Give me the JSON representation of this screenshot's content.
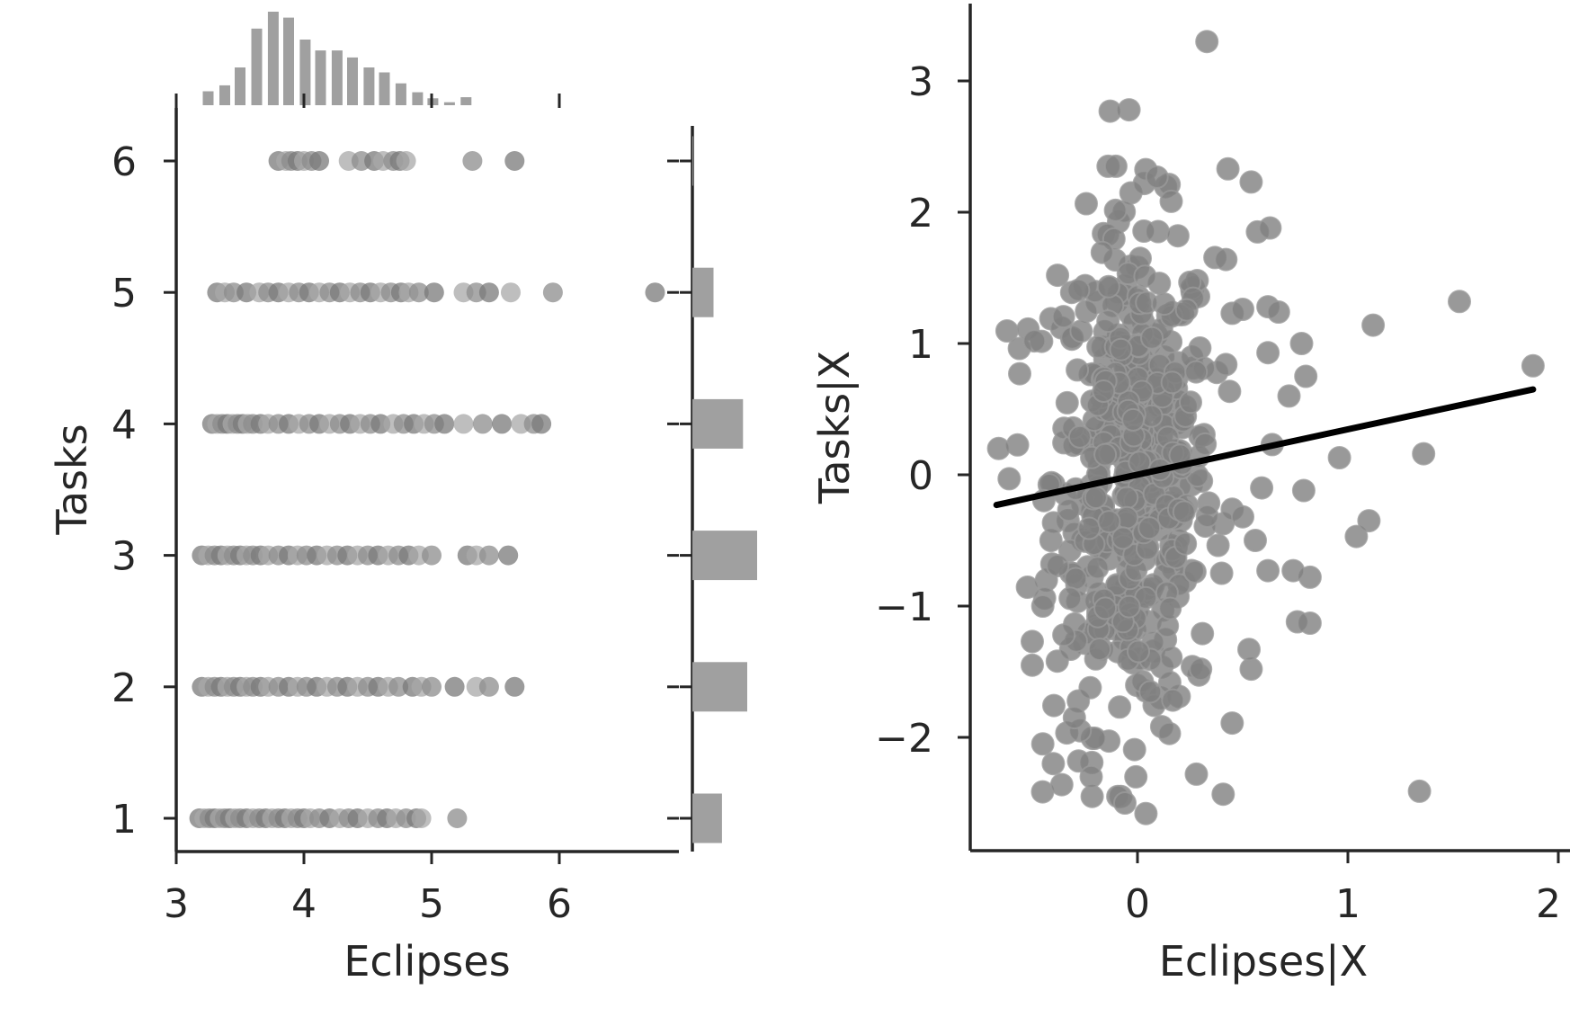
{
  "chart_data": [
    {
      "type": "scatter",
      "panel": "joint",
      "xlabel": "Eclipses",
      "ylabel": "Tasks",
      "xlim": [
        3.0,
        7.0
      ],
      "ylim": [
        0.75,
        6.35
      ],
      "xticks": [
        3,
        4,
        5,
        6
      ],
      "yticks": [
        1,
        2,
        3,
        4,
        5,
        6
      ],
      "grid": false,
      "point_color": "#8c8c8c",
      "tick_label_color": "#262626",
      "points": [
        {
          "y": 1,
          "x": [
            3.18,
            3.22,
            3.26,
            3.3,
            3.34,
            3.38,
            3.42,
            3.46,
            3.5,
            3.55,
            3.6,
            3.65,
            3.7,
            3.75,
            3.8,
            3.85,
            3.9,
            3.95,
            4.0,
            4.05,
            4.12,
            4.2,
            4.28,
            4.35,
            4.42,
            4.5,
            4.58,
            4.65,
            4.72,
            4.8,
            4.88,
            4.92,
            5.2
          ]
        },
        {
          "y": 2,
          "x": [
            3.2,
            3.25,
            3.3,
            3.35,
            3.4,
            3.45,
            3.5,
            3.55,
            3.6,
            3.66,
            3.72,
            3.8,
            3.88,
            3.95,
            4.02,
            4.1,
            4.18,
            4.26,
            4.34,
            4.42,
            4.5,
            4.58,
            4.66,
            4.74,
            4.85,
            4.92,
            5.0,
            5.18,
            5.35,
            5.45,
            5.65
          ]
        },
        {
          "y": 3,
          "x": [
            3.2,
            3.25,
            3.3,
            3.35,
            3.4,
            3.45,
            3.5,
            3.55,
            3.6,
            3.66,
            3.72,
            3.8,
            3.88,
            3.95,
            4.02,
            4.1,
            4.18,
            4.26,
            4.34,
            4.42,
            4.5,
            4.58,
            4.66,
            4.74,
            4.82,
            4.9,
            5.0,
            5.28,
            5.35,
            5.45,
            5.6
          ]
        },
        {
          "y": 4,
          "x": [
            3.28,
            3.32,
            3.36,
            3.4,
            3.44,
            3.48,
            3.52,
            3.56,
            3.6,
            3.66,
            3.72,
            3.8,
            3.88,
            3.96,
            4.04,
            4.12,
            4.2,
            4.28,
            4.36,
            4.44,
            4.52,
            4.6,
            4.7,
            4.78,
            4.86,
            4.94,
            5.02,
            5.1,
            5.25,
            5.4,
            5.55,
            5.7,
            5.8,
            5.86
          ]
        },
        {
          "y": 5,
          "x": [
            3.32,
            3.38,
            3.45,
            3.55,
            3.65,
            3.72,
            3.8,
            3.88,
            3.96,
            4.04,
            4.12,
            4.2,
            4.28,
            4.36,
            4.44,
            4.52,
            4.6,
            4.68,
            4.76,
            4.82,
            4.9,
            5.02,
            5.25,
            5.35,
            5.45,
            5.62,
            5.95,
            6.75
          ]
        },
        {
          "y": 6,
          "x": [
            3.8,
            3.86,
            3.9,
            3.95,
            4.0,
            4.06,
            4.12,
            4.35,
            4.45,
            4.55,
            4.62,
            4.7,
            4.75,
            4.8,
            5.32,
            5.65
          ]
        }
      ]
    },
    {
      "type": "bar",
      "panel": "x-marginal-histogram",
      "orientation": "vertical",
      "bin_centers": [
        3.25,
        3.38,
        3.5,
        3.63,
        3.76,
        3.88,
        4.01,
        4.13,
        4.26,
        4.38,
        4.51,
        4.63,
        4.76,
        4.89,
        5.01,
        5.14,
        5.27
      ],
      "counts": [
        14,
        20,
        38,
        77,
        94,
        88,
        66,
        55,
        55,
        48,
        38,
        33,
        22,
        13,
        7,
        3,
        8
      ],
      "color": "#a0a0a0"
    },
    {
      "type": "bar",
      "panel": "y-marginal-histogram",
      "orientation": "horizontal",
      "categories": [
        1,
        2,
        3,
        4,
        5,
        6
      ],
      "counts": [
        105,
        195,
        230,
        180,
        75,
        3
      ],
      "color": "#a0a0a0"
    },
    {
      "type": "scatter",
      "panel": "partial-regression",
      "xlabel": "Eclipses|X",
      "ylabel": "Tasks|X",
      "xlim": [
        -0.79,
        2.0
      ],
      "ylim": [
        -2.85,
        3.6
      ],
      "xticks": [
        0,
        1,
        2
      ],
      "yticks": [
        -2,
        -1,
        0,
        1,
        2,
        3
      ],
      "xtick_labels": [
        "0",
        "1",
        "2"
      ],
      "ytick_labels": [
        "−2",
        "−1",
        "0",
        "1",
        "2",
        "3"
      ],
      "grid": false,
      "point_color": "#808080",
      "regression_line": {
        "x": [
          -0.67,
          1.88
        ],
        "y": [
          -0.23,
          0.65
        ],
        "color": "#000000"
      },
      "cluster": {
        "n": 520,
        "x_center": -0.02,
        "x_sd": 0.19,
        "y_center": 0.0,
        "y_sd": 0.95
      },
      "outliers": [
        [
          0.33,
          3.3
        ],
        [
          -0.04,
          2.78
        ],
        [
          -0.13,
          2.77
        ],
        [
          0.43,
          2.33
        ],
        [
          0.54,
          2.23
        ],
        [
          1.53,
          1.32
        ],
        [
          1.12,
          1.14
        ],
        [
          1.88,
          0.83
        ],
        [
          0.78,
          1.0
        ],
        [
          0.8,
          0.75
        ],
        [
          0.72,
          0.6
        ],
        [
          0.62,
          0.93
        ],
        [
          0.62,
          1.28
        ],
        [
          0.67,
          1.24
        ],
        [
          0.57,
          1.85
        ],
        [
          0.63,
          1.88
        ],
        [
          0.42,
          1.64
        ],
        [
          0.42,
          0.84
        ],
        [
          -0.66,
          0.2
        ],
        [
          -0.61,
          -0.03
        ],
        [
          -0.56,
          0.77
        ],
        [
          -0.52,
          1.11
        ],
        [
          -0.49,
          1.02
        ],
        [
          -0.5,
          -1.27
        ],
        [
          -0.5,
          -1.45
        ],
        [
          -0.45,
          -1.0
        ],
        [
          -0.45,
          -2.05
        ],
        [
          -0.4,
          -2.2
        ],
        [
          -0.36,
          -2.36
        ],
        [
          -0.28,
          -2.18
        ],
        [
          -0.22,
          -2.3
        ],
        [
          -0.06,
          -2.5
        ],
        [
          0.04,
          -2.58
        ],
        [
          0.28,
          -2.28
        ],
        [
          1.36,
          0.16
        ],
        [
          0.96,
          0.13
        ],
        [
          1.04,
          -0.47
        ],
        [
          1.1,
          -0.35
        ],
        [
          1.34,
          -2.41
        ],
        [
          0.82,
          -0.78
        ],
        [
          0.82,
          -1.13
        ],
        [
          0.76,
          -1.12
        ],
        [
          0.74,
          -0.73
        ],
        [
          0.62,
          -0.73
        ],
        [
          0.54,
          -1.48
        ],
        [
          0.53,
          -1.33
        ],
        [
          0.59,
          -0.1
        ],
        [
          0.56,
          -0.5
        ],
        [
          0.5,
          -0.32
        ],
        [
          0.4,
          -0.75
        ],
        [
          0.3,
          -1.48
        ],
        [
          0.64,
          0.23
        ],
        [
          0.79,
          -0.12
        ],
        [
          0.45,
          1.23
        ],
        [
          0.5,
          1.26
        ],
        [
          -0.35,
          -1.22
        ],
        [
          -0.3,
          -1.85
        ],
        [
          -0.38,
          1.52
        ]
      ]
    }
  ]
}
